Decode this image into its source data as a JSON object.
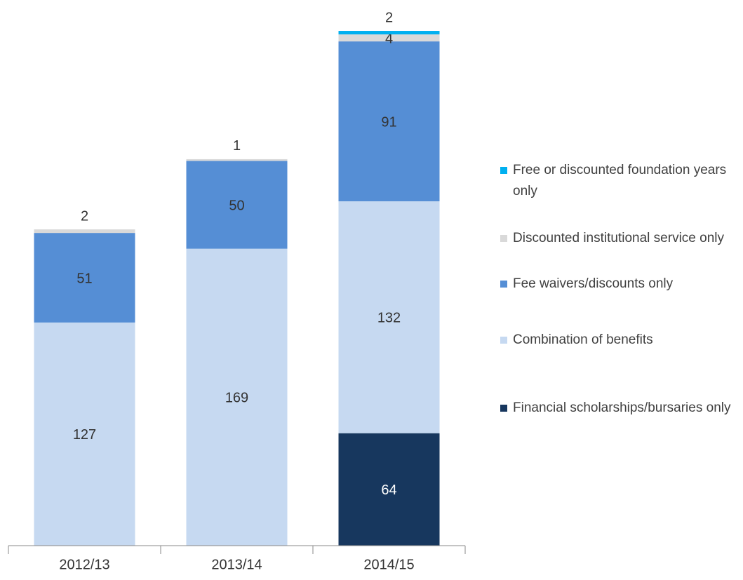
{
  "chart_data": {
    "type": "stacked_bar",
    "categories": [
      "2012/13",
      "2013/14",
      "2014/15"
    ],
    "series": [
      {
        "name": "Financial scholarships/bursaries only",
        "color": "#17375e",
        "values": [
          null,
          null,
          64
        ]
      },
      {
        "name": "Combination of benefits",
        "color": "#c6d9f1",
        "values": [
          127,
          169,
          132
        ]
      },
      {
        "name": "Fee waivers/discounts only",
        "color": "#558ed5",
        "values": [
          51,
          50,
          91
        ]
      },
      {
        "name": "Discounted institutional service only",
        "color": "#d9d9d9",
        "values": [
          2,
          1,
          4
        ]
      },
      {
        "name": "Free or discounted foundation years only",
        "color": "#00b0f0",
        "values": [
          null,
          null,
          2
        ]
      }
    ],
    "ylim": [
      0,
      300
    ],
    "legend": "right"
  }
}
